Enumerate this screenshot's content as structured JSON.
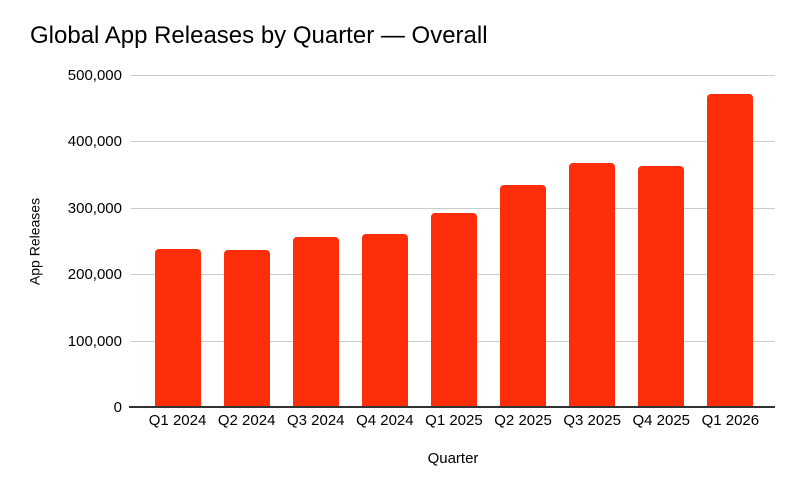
{
  "page": {
    "background_color": "#FFFFFF"
  },
  "chart_data": {
    "type": "bar",
    "title": "Global App Releases by Quarter — Overall",
    "xlabel": "Quarter",
    "ylabel": "App Releases",
    "categories": [
      "Q1 2024",
      "Q2 2024",
      "Q3 2024",
      "Q4 2024",
      "Q1 2025",
      "Q2 2025",
      "Q3 2025",
      "Q4 2025",
      "Q1 2026"
    ],
    "values": [
      238000,
      236000,
      256000,
      260000,
      292000,
      335000,
      367000,
      363000,
      472000
    ],
    "ylim": [
      0,
      500000
    ],
    "yticks": [
      {
        "value": 0,
        "label": "0"
      },
      {
        "value": 100000,
        "label": "100,000"
      },
      {
        "value": 200000,
        "label": "200,000"
      },
      {
        "value": 300000,
        "label": "300,000"
      },
      {
        "value": 400000,
        "label": "400,000"
      },
      {
        "value": 500000,
        "label": "500,000"
      }
    ],
    "grid": "horizontal",
    "legend": "none",
    "bar_color": "#FF2E0A",
    "gridline_color": "#CCCCCC",
    "axis_line_color": "#333333",
    "text_color": "#000000"
  }
}
